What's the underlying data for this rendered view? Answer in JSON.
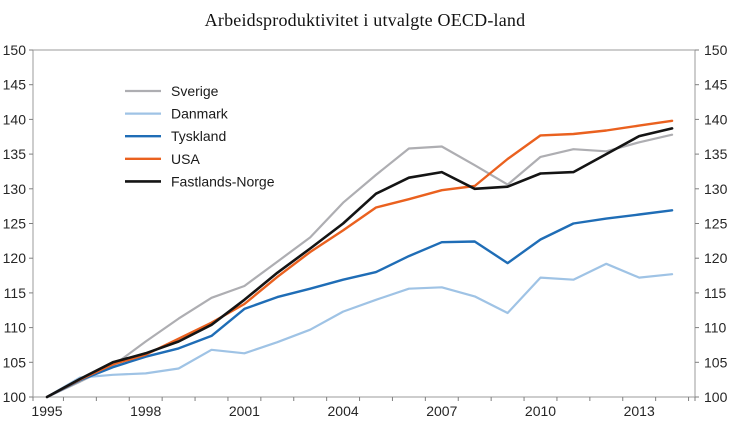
{
  "title": "Arbeidsproduktivitet i utvalgte OECD-land",
  "chart_data": {
    "type": "line",
    "title": "Arbeidsproduktivitet i utvalgte OECD-land",
    "xlabel": "",
    "ylabel": "",
    "ylim": [
      100,
      150
    ],
    "yticks": [
      100,
      105,
      110,
      115,
      120,
      125,
      130,
      135,
      140,
      145,
      150
    ],
    "y_axis_sides": [
      "left",
      "right"
    ],
    "grid": false,
    "legend_position": "inside-top-left",
    "x": [
      1995,
      1996,
      1997,
      1998,
      1999,
      2000,
      2001,
      2002,
      2003,
      2004,
      2005,
      2006,
      2007,
      2008,
      2009,
      2010,
      2011,
      2012,
      2013,
      2014
    ],
    "xtick_labels": [
      "1995",
      "1998",
      "2001",
      "2004",
      "2007",
      "2010",
      "2013"
    ],
    "series": [
      {
        "name": "Sverige",
        "color": "#aeaeb2",
        "values": [
          100,
          102.2,
          104.5,
          108.0,
          111.3,
          114.3,
          116.0,
          119.5,
          123.0,
          128.0,
          132.0,
          135.8,
          136.1,
          133.4,
          130.6,
          134.6,
          135.7,
          135.4,
          136.7,
          137.8
        ]
      },
      {
        "name": "Danmark",
        "color": "#9fc3e5",
        "values": [
          100,
          102.8,
          103.2,
          103.4,
          104.1,
          106.8,
          106.3,
          107.9,
          109.7,
          112.3,
          114.0,
          115.6,
          115.8,
          114.5,
          112.1,
          117.2,
          116.9,
          119.2,
          117.2,
          117.7
        ]
      },
      {
        "name": "Tyskland",
        "color": "#1f6db6",
        "values": [
          100,
          102.4,
          104.3,
          105.8,
          107.0,
          108.8,
          112.7,
          114.4,
          115.6,
          116.9,
          118.0,
          120.3,
          122.3,
          122.4,
          119.3,
          122.7,
          125.0,
          125.7,
          126.3,
          126.9
        ]
      },
      {
        "name": "USA",
        "color": "#ea611f",
        "values": [
          100,
          102.5,
          104.7,
          106.1,
          108.4,
          110.7,
          113.4,
          117.3,
          120.9,
          124.0,
          127.3,
          128.5,
          129.8,
          130.4,
          134.3,
          137.7,
          137.9,
          138.4,
          139.1,
          139.8
        ]
      },
      {
        "name": "Fastlands-Norge",
        "color": "#141414",
        "values": [
          100,
          102.6,
          105.0,
          106.3,
          108.0,
          110.4,
          114.0,
          117.9,
          121.4,
          125.0,
          129.3,
          131.6,
          132.4,
          130.0,
          130.3,
          132.2,
          132.4,
          135.0,
          137.6,
          138.7
        ]
      }
    ],
    "axis_color": "#9b9b9b",
    "tick_color": "#7f7f7f"
  }
}
